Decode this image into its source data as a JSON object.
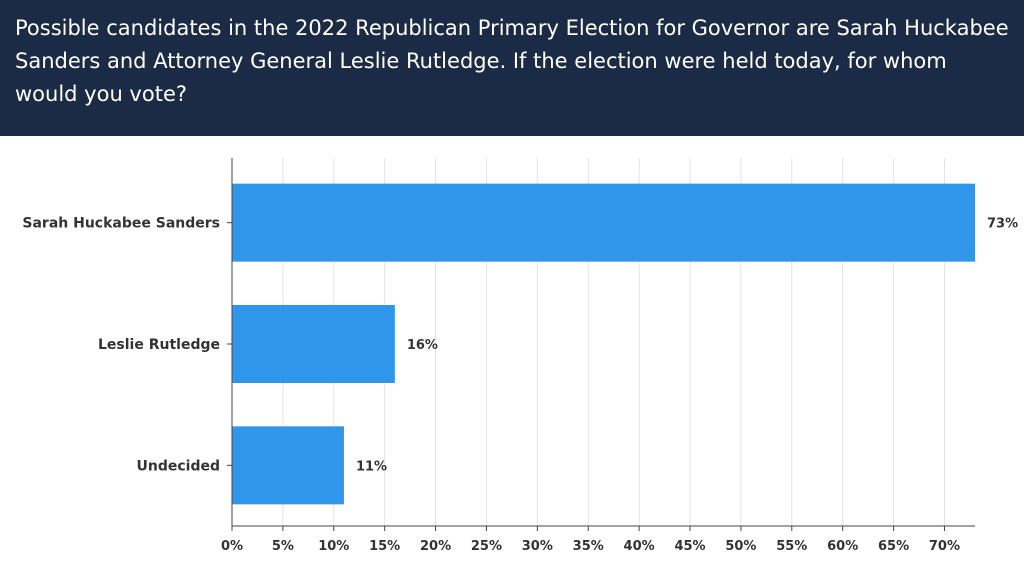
{
  "header": {
    "question": "Possible candidates in the 2022 Republican Primary Election for Governor are Sarah Huckabee Sanders and Attorney General Leslie Rutledge. If the election were held today, for whom would you vote?"
  },
  "colors": {
    "header_bg": "#1c2b45",
    "bar": "#3096ea",
    "grid": "#e3e3e3",
    "axis": "#444444"
  },
  "chart_data": {
    "type": "bar",
    "orientation": "horizontal",
    "categories": [
      "Sarah Huckabee Sanders",
      "Leslie Rutledge",
      "Undecided"
    ],
    "values": [
      73,
      16,
      11
    ],
    "value_labels": [
      "73%",
      "16%",
      "11%"
    ],
    "xlim": [
      0,
      73
    ],
    "x_ticks": [
      0,
      5,
      10,
      15,
      20,
      25,
      30,
      35,
      40,
      45,
      50,
      55,
      60,
      65,
      70
    ],
    "x_tick_labels": [
      "0%",
      "5%",
      "10%",
      "15%",
      "20%",
      "25%",
      "30%",
      "35%",
      "40%",
      "45%",
      "50%",
      "55%",
      "60%",
      "65%",
      "70%"
    ],
    "grid": true
  }
}
